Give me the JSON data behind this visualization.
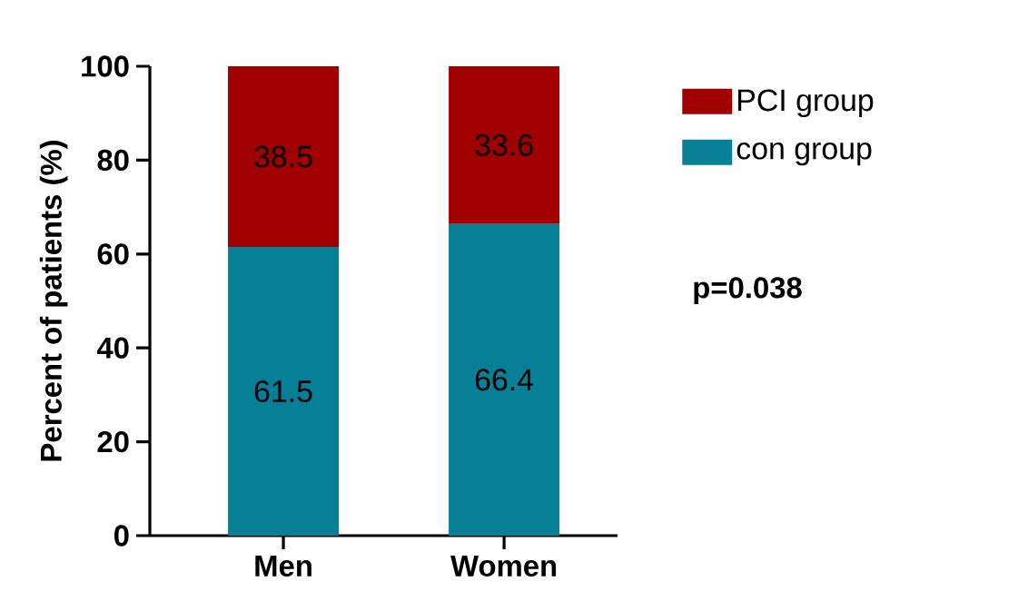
{
  "chart_data": {
    "type": "bar",
    "stacked": true,
    "categories": [
      "Men",
      "Women"
    ],
    "ylabel": "Percent of patients (%)",
    "series": [
      {
        "name": "con group",
        "color": "#077f97",
        "values": [
          61.5,
          66.4
        ]
      },
      {
        "name": "PCI group",
        "color": "#a10000",
        "values": [
          38.5,
          33.6
        ]
      }
    ],
    "ylim": [
      0,
      100
    ],
    "yticks": [
      0,
      20,
      40,
      60,
      80,
      100
    ],
    "data_labels": true,
    "legend": "right",
    "grid": false,
    "annotations": [
      "p=0.038"
    ]
  }
}
